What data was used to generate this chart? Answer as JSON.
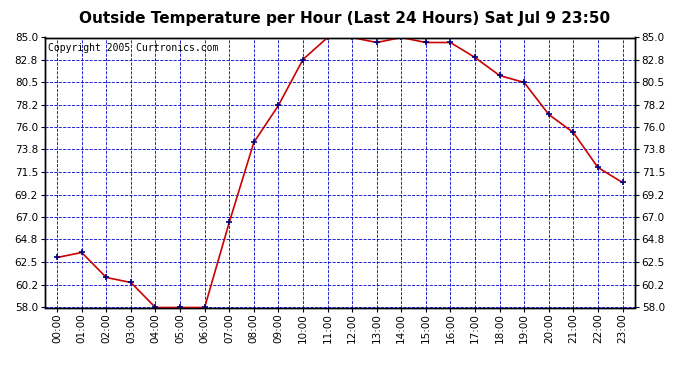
{
  "title": "Outside Temperature per Hour (Last 24 Hours) Sat Jul 9 23:50",
  "copyright": "Copyright 2005 Curtronics.com",
  "hours": [
    "00:00",
    "01:00",
    "02:00",
    "03:00",
    "04:00",
    "05:00",
    "06:00",
    "07:00",
    "08:00",
    "09:00",
    "10:00",
    "11:00",
    "12:00",
    "13:00",
    "14:00",
    "15:00",
    "16:00",
    "17:00",
    "18:00",
    "19:00",
    "20:00",
    "21:00",
    "22:00",
    "23:00"
  ],
  "temperatures": [
    63.0,
    63.5,
    61.0,
    60.5,
    58.0,
    58.0,
    58.0,
    66.5,
    74.5,
    78.2,
    82.8,
    85.0,
    85.0,
    84.5,
    85.0,
    84.5,
    84.5,
    83.0,
    81.2,
    80.5,
    77.3,
    75.5,
    72.0,
    70.5
  ],
  "line_color": "#cc0000",
  "marker_color": "#000080",
  "bg_color": "#ffffff",
  "grid_color": "#0000cc",
  "ylim_min": 58.0,
  "ylim_max": 85.0,
  "yticks": [
    58.0,
    60.2,
    62.5,
    64.8,
    67.0,
    69.2,
    71.5,
    73.8,
    76.0,
    78.2,
    80.5,
    82.8,
    85.0
  ],
  "title_fontsize": 11,
  "copyright_fontsize": 7,
  "tick_fontsize": 7.5
}
